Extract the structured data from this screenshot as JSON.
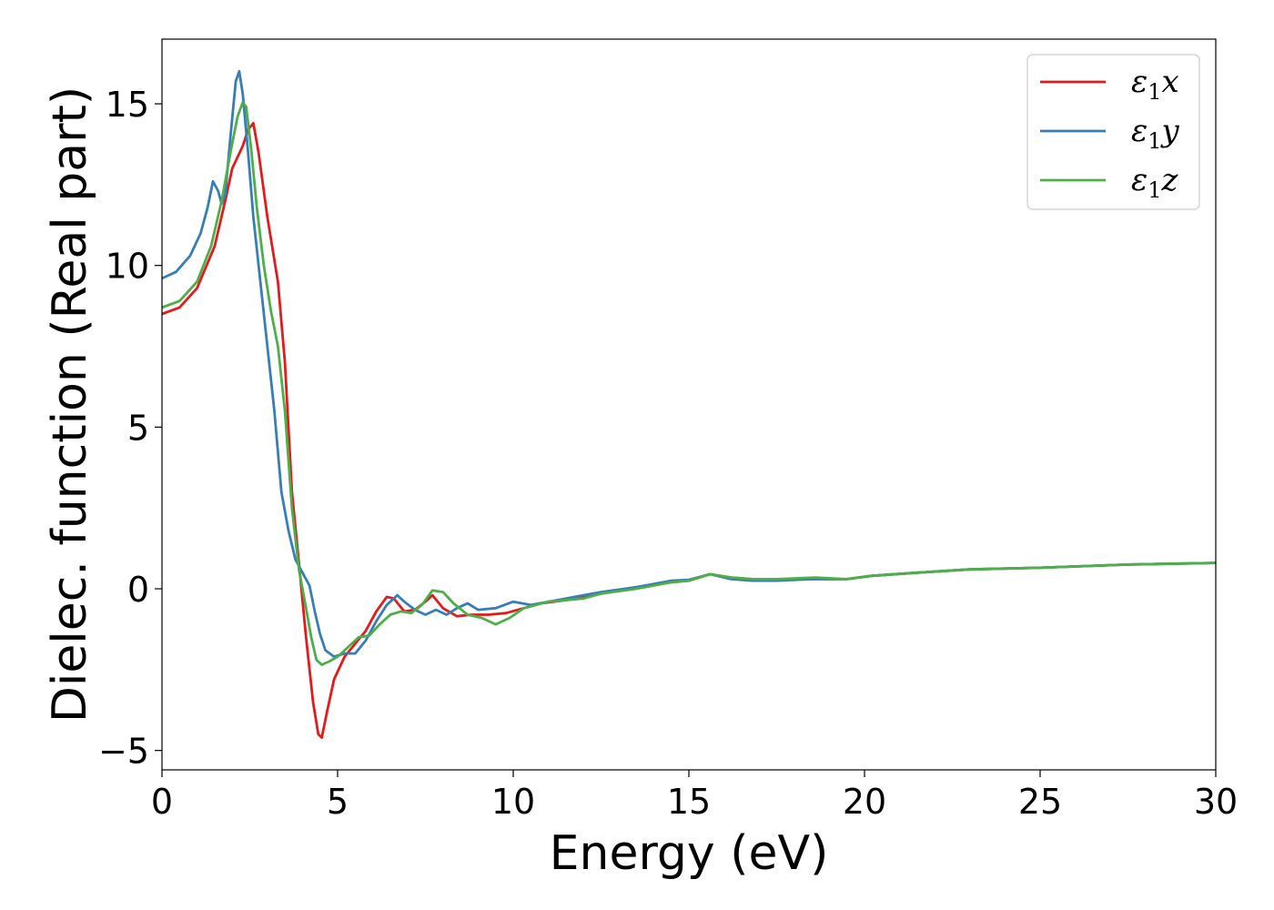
{
  "chart_data": {
    "type": "line",
    "title": "",
    "xlabel": "Energy (eV)",
    "ylabel": "Dielec. function (Real part)",
    "xlim": [
      0,
      30
    ],
    "ylim": [
      -5.6,
      17
    ],
    "xticks": [
      0,
      5,
      10,
      15,
      20,
      25,
      30
    ],
    "xtick_labels": [
      "0",
      "5",
      "10",
      "15",
      "20",
      "25",
      "30"
    ],
    "yticks": [
      -5,
      0,
      5,
      10,
      15
    ],
    "ytick_labels": [
      "−5",
      "0",
      "5",
      "10",
      "15"
    ],
    "grid": false,
    "legend_position": "top-right",
    "series": [
      {
        "name": "ε₁x",
        "label_main": "ε",
        "label_sub": "1",
        "label_var": "x",
        "color": "#e41a1c",
        "points": [
          [
            0,
            8.5
          ],
          [
            0.5,
            8.7
          ],
          [
            1.0,
            9.3
          ],
          [
            1.5,
            10.6
          ],
          [
            1.8,
            12.0
          ],
          [
            2.0,
            13.0
          ],
          [
            2.3,
            13.7
          ],
          [
            2.45,
            14.2
          ],
          [
            2.6,
            14.4
          ],
          [
            2.75,
            13.5
          ],
          [
            3.0,
            11.5
          ],
          [
            3.3,
            9.5
          ],
          [
            3.5,
            7.0
          ],
          [
            3.7,
            3.0
          ],
          [
            3.9,
            0.8
          ],
          [
            4.1,
            -1.5
          ],
          [
            4.3,
            -3.5
          ],
          [
            4.45,
            -4.5
          ],
          [
            4.55,
            -4.6
          ],
          [
            4.7,
            -3.8
          ],
          [
            4.9,
            -2.8
          ],
          [
            5.2,
            -2.1
          ],
          [
            5.5,
            -1.7
          ],
          [
            5.8,
            -1.3
          ],
          [
            6.1,
            -0.7
          ],
          [
            6.4,
            -0.25
          ],
          [
            6.6,
            -0.3
          ],
          [
            6.9,
            -0.7
          ],
          [
            7.2,
            -0.65
          ],
          [
            7.5,
            -0.4
          ],
          [
            7.7,
            -0.2
          ],
          [
            8.0,
            -0.6
          ],
          [
            8.4,
            -0.85
          ],
          [
            8.8,
            -0.8
          ],
          [
            9.3,
            -0.8
          ],
          [
            9.8,
            -0.75
          ],
          [
            10.3,
            -0.6
          ],
          [
            10.8,
            -0.45
          ],
          [
            11.5,
            -0.35
          ],
          [
            12.5,
            -0.15
          ],
          [
            13.5,
            0.05
          ],
          [
            14.5,
            0.2
          ],
          [
            15.0,
            0.25
          ],
          [
            15.6,
            0.45
          ],
          [
            16.2,
            0.35
          ],
          [
            16.8,
            0.3
          ],
          [
            17.5,
            0.3
          ],
          [
            18.5,
            0.3
          ],
          [
            19.5,
            0.3
          ],
          [
            20.2,
            0.4
          ],
          [
            21.5,
            0.5
          ],
          [
            23,
            0.6
          ],
          [
            25,
            0.65
          ],
          [
            27.5,
            0.75
          ],
          [
            30,
            0.8
          ]
        ]
      },
      {
        "name": "ε₁y",
        "label_main": "ε",
        "label_sub": "1",
        "label_var": "y",
        "color": "#377eb8",
        "points": [
          [
            0,
            9.6
          ],
          [
            0.4,
            9.8
          ],
          [
            0.8,
            10.3
          ],
          [
            1.1,
            11.0
          ],
          [
            1.3,
            11.8
          ],
          [
            1.45,
            12.6
          ],
          [
            1.6,
            12.3
          ],
          [
            1.7,
            11.9
          ],
          [
            1.8,
            12.2
          ],
          [
            1.95,
            14.0
          ],
          [
            2.1,
            15.7
          ],
          [
            2.2,
            16.0
          ],
          [
            2.3,
            15.3
          ],
          [
            2.45,
            13.5
          ],
          [
            2.6,
            11.5
          ],
          [
            2.8,
            9.5
          ],
          [
            3.0,
            7.5
          ],
          [
            3.2,
            5.5
          ],
          [
            3.4,
            3.0
          ],
          [
            3.6,
            1.8
          ],
          [
            3.8,
            0.9
          ],
          [
            4.0,
            0.5
          ],
          [
            4.2,
            0.1
          ],
          [
            4.35,
            -0.7
          ],
          [
            4.5,
            -1.4
          ],
          [
            4.65,
            -1.9
          ],
          [
            4.9,
            -2.1
          ],
          [
            5.2,
            -2.0
          ],
          [
            5.5,
            -2.0
          ],
          [
            5.8,
            -1.6
          ],
          [
            6.1,
            -1.0
          ],
          [
            6.4,
            -0.5
          ],
          [
            6.7,
            -0.2
          ],
          [
            6.9,
            -0.4
          ],
          [
            7.2,
            -0.65
          ],
          [
            7.5,
            -0.8
          ],
          [
            7.8,
            -0.65
          ],
          [
            8.1,
            -0.8
          ],
          [
            8.4,
            -0.6
          ],
          [
            8.7,
            -0.45
          ],
          [
            9.0,
            -0.65
          ],
          [
            9.5,
            -0.6
          ],
          [
            10.0,
            -0.4
          ],
          [
            10.5,
            -0.5
          ],
          [
            11.0,
            -0.4
          ],
          [
            11.5,
            -0.3
          ],
          [
            12.0,
            -0.2
          ],
          [
            12.5,
            -0.1
          ],
          [
            13.5,
            0.05
          ],
          [
            14.5,
            0.25
          ],
          [
            15.0,
            0.28
          ],
          [
            15.6,
            0.45
          ],
          [
            16.2,
            0.3
          ],
          [
            16.8,
            0.25
          ],
          [
            17.5,
            0.25
          ],
          [
            18.5,
            0.3
          ],
          [
            19.5,
            0.3
          ],
          [
            20.2,
            0.4
          ],
          [
            21.5,
            0.5
          ],
          [
            23,
            0.6
          ],
          [
            25,
            0.65
          ],
          [
            27.5,
            0.75
          ],
          [
            30,
            0.8
          ]
        ]
      },
      {
        "name": "ε₁z",
        "label_main": "ε",
        "label_sub": "1",
        "label_var": "z",
        "color": "#4daf4a",
        "points": [
          [
            0,
            8.7
          ],
          [
            0.5,
            8.9
          ],
          [
            1.0,
            9.5
          ],
          [
            1.4,
            10.6
          ],
          [
            1.7,
            12.0
          ],
          [
            1.95,
            13.5
          ],
          [
            2.15,
            14.6
          ],
          [
            2.3,
            15.05
          ],
          [
            2.4,
            14.9
          ],
          [
            2.55,
            13.5
          ],
          [
            2.7,
            11.8
          ],
          [
            2.9,
            10.0
          ],
          [
            3.1,
            8.6
          ],
          [
            3.3,
            7.5
          ],
          [
            3.5,
            5.5
          ],
          [
            3.7,
            2.5
          ],
          [
            3.9,
            0.6
          ],
          [
            4.1,
            -0.6
          ],
          [
            4.25,
            -1.5
          ],
          [
            4.4,
            -2.2
          ],
          [
            4.55,
            -2.35
          ],
          [
            4.75,
            -2.25
          ],
          [
            5.0,
            -2.1
          ],
          [
            5.3,
            -1.8
          ],
          [
            5.6,
            -1.5
          ],
          [
            5.9,
            -1.45
          ],
          [
            6.2,
            -1.1
          ],
          [
            6.5,
            -0.8
          ],
          [
            6.8,
            -0.7
          ],
          [
            7.1,
            -0.75
          ],
          [
            7.4,
            -0.5
          ],
          [
            7.7,
            -0.05
          ],
          [
            8.0,
            -0.1
          ],
          [
            8.3,
            -0.45
          ],
          [
            8.7,
            -0.8
          ],
          [
            9.1,
            -0.9
          ],
          [
            9.5,
            -1.1
          ],
          [
            9.9,
            -0.9
          ],
          [
            10.3,
            -0.6
          ],
          [
            11.0,
            -0.4
          ],
          [
            11.5,
            -0.35
          ],
          [
            12.0,
            -0.3
          ],
          [
            12.5,
            -0.15
          ],
          [
            13.5,
            0.0
          ],
          [
            14.5,
            0.2
          ],
          [
            15.0,
            0.25
          ],
          [
            15.6,
            0.45
          ],
          [
            16.2,
            0.35
          ],
          [
            16.8,
            0.3
          ],
          [
            17.5,
            0.3
          ],
          [
            18.6,
            0.35
          ],
          [
            19.5,
            0.3
          ],
          [
            20.2,
            0.4
          ],
          [
            21.5,
            0.5
          ],
          [
            23,
            0.6
          ],
          [
            25,
            0.65
          ],
          [
            27.5,
            0.75
          ],
          [
            30,
            0.8
          ]
        ]
      }
    ]
  }
}
